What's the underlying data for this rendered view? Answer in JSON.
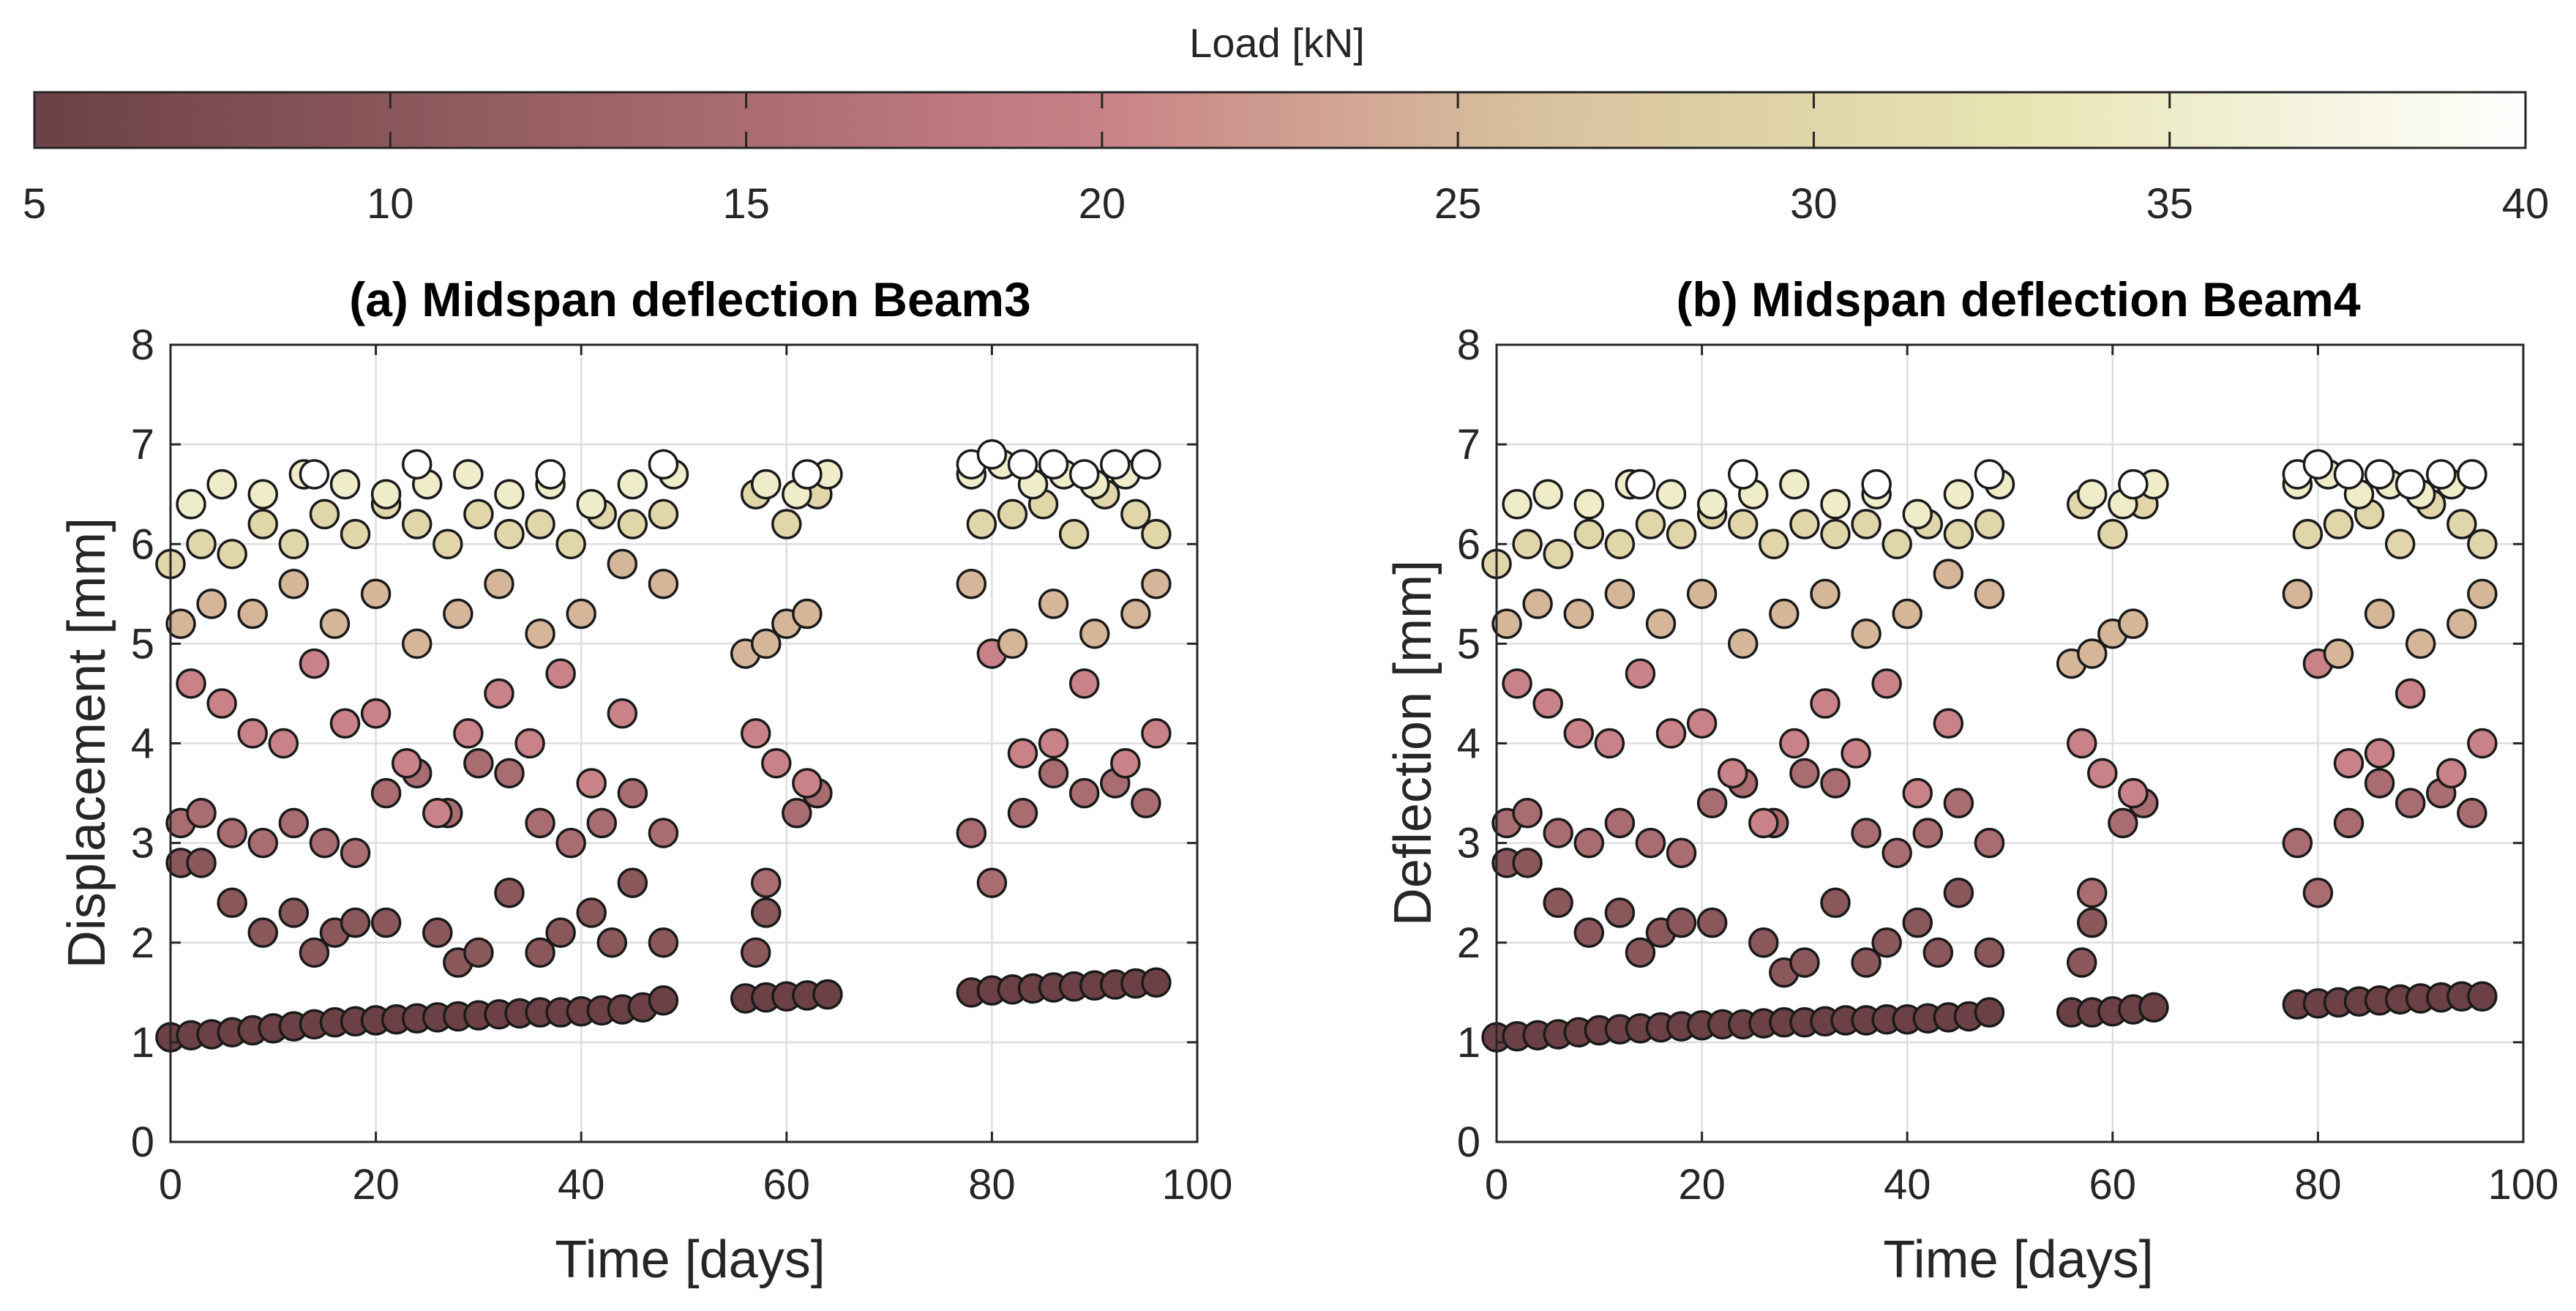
{
  "chart_data": [
    {
      "type": "scatter",
      "title": "(a) Midspan deflection Beam3",
      "xlabel": "Time [days]",
      "ylabel": "Displacement [mm]",
      "xlim": [
        0,
        100
      ],
      "ylim": [
        0,
        8
      ],
      "xticks": [
        0,
        20,
        40,
        60,
        80,
        100
      ],
      "yticks": [
        0,
        1,
        2,
        3,
        4,
        5,
        6,
        7,
        8
      ],
      "grid": true,
      "color_by": "Load [kN]",
      "series": [
        {
          "name": "5 kN",
          "load": 5,
          "x": [
            0,
            2,
            4,
            6,
            8,
            10,
            12,
            14,
            16,
            18,
            20,
            22,
            24,
            26,
            28,
            30,
            32,
            34,
            36,
            38,
            40,
            42,
            44,
            46,
            48,
            56,
            58,
            60,
            62,
            64,
            78,
            80,
            82,
            84,
            86,
            88,
            90,
            92,
            94,
            96
          ],
          "y": [
            1.05,
            1.07,
            1.08,
            1.1,
            1.12,
            1.14,
            1.16,
            1.18,
            1.2,
            1.21,
            1.22,
            1.23,
            1.24,
            1.25,
            1.26,
            1.27,
            1.28,
            1.29,
            1.3,
            1.3,
            1.31,
            1.32,
            1.33,
            1.35,
            1.42,
            1.44,
            1.45,
            1.46,
            1.47,
            1.48,
            1.5,
            1.52,
            1.53,
            1.54,
            1.55,
            1.56,
            1.57,
            1.58,
            1.59,
            1.6
          ]
        },
        {
          "name": "10 kN",
          "load": 10,
          "x": [
            1,
            3,
            6,
            9,
            12,
            14,
            16,
            18,
            21,
            26,
            28,
            30,
            33,
            36,
            38,
            41,
            43,
            45,
            48,
            57,
            58
          ],
          "y": [
            2.8,
            2.8,
            2.4,
            2.1,
            2.3,
            1.9,
            2.1,
            2.2,
            2.2,
            2.1,
            1.8,
            1.9,
            2.5,
            1.9,
            2.1,
            2.3,
            2.0,
            2.6,
            2.0,
            1.9,
            2.3
          ]
        },
        {
          "name": "15 kN",
          "load": 15,
          "x": [
            1,
            3,
            6,
            9,
            12,
            15,
            18,
            21,
            24,
            27,
            30,
            33,
            36,
            39,
            42,
            45,
            48,
            58,
            61,
            63,
            78,
            80,
            83,
            86,
            89,
            92,
            95
          ],
          "y": [
            3.2,
            3.3,
            3.1,
            3.0,
            3.2,
            3.0,
            2.9,
            3.5,
            3.7,
            3.3,
            3.8,
            3.7,
            3.2,
            3.0,
            3.2,
            3.5,
            3.1,
            2.6,
            3.3,
            3.5,
            3.1,
            2.6,
            3.3,
            3.7,
            3.5,
            3.6,
            3.4
          ]
        },
        {
          "name": "20 kN",
          "load": 20,
          "x": [
            2,
            5,
            8,
            11,
            14,
            17,
            20,
            23,
            26,
            29,
            32,
            35,
            38,
            41,
            44,
            57,
            59,
            62,
            80,
            83,
            86,
            89,
            93,
            96
          ],
          "y": [
            4.6,
            4.4,
            4.1,
            4.0,
            4.8,
            4.2,
            4.3,
            3.8,
            3.3,
            4.1,
            4.5,
            4.0,
            4.7,
            3.6,
            4.3,
            4.1,
            3.8,
            3.6,
            4.9,
            3.9,
            4.0,
            4.6,
            3.8,
            4.1
          ]
        },
        {
          "name": "25 kN",
          "load": 25,
          "x": [
            1,
            4,
            8,
            12,
            16,
            20,
            24,
            28,
            32,
            36,
            40,
            44,
            48,
            56,
            58,
            60,
            62,
            78,
            82,
            86,
            90,
            94,
            96
          ],
          "y": [
            5.2,
            5.4,
            5.3,
            5.6,
            5.2,
            5.5,
            5.0,
            5.3,
            5.6,
            5.1,
            5.3,
            5.8,
            5.6,
            4.9,
            5.0,
            5.2,
            5.3,
            5.6,
            5.0,
            5.4,
            5.1,
            5.3,
            5.6
          ]
        },
        {
          "name": "30 kN",
          "load": 30,
          "x": [
            0,
            3,
            6,
            9,
            12,
            15,
            18,
            21,
            24,
            27,
            30,
            33,
            36,
            39,
            42,
            45,
            48,
            57,
            60,
            63,
            79,
            82,
            85,
            88,
            91,
            94,
            96
          ],
          "y": [
            5.8,
            6.0,
            5.9,
            6.2,
            6.0,
            6.3,
            6.1,
            6.4,
            6.2,
            6.0,
            6.3,
            6.1,
            6.2,
            6.0,
            6.3,
            6.2,
            6.3,
            6.5,
            6.2,
            6.5,
            6.2,
            6.3,
            6.4,
            6.1,
            6.5,
            6.3,
            6.1
          ]
        },
        {
          "name": "35 kN",
          "load": 35,
          "x": [
            2,
            5,
            9,
            13,
            17,
            21,
            25,
            29,
            33,
            37,
            41,
            45,
            49,
            58,
            61,
            64,
            78,
            81,
            84,
            87,
            90,
            93,
            95
          ],
          "y": [
            6.4,
            6.6,
            6.5,
            6.7,
            6.6,
            6.5,
            6.6,
            6.7,
            6.5,
            6.6,
            6.4,
            6.6,
            6.7,
            6.6,
            6.5,
            6.7,
            6.7,
            6.8,
            6.6,
            6.7,
            6.6,
            6.7,
            6.8
          ]
        },
        {
          "name": "40 kN",
          "load": 40,
          "x": [
            14,
            24,
            37,
            48,
            62,
            78,
            80,
            83,
            86,
            89,
            92,
            95
          ],
          "y": [
            6.7,
            6.8,
            6.7,
            6.8,
            6.7,
            6.8,
            6.9,
            6.8,
            6.8,
            6.7,
            6.8,
            6.8
          ]
        }
      ]
    },
    {
      "type": "scatter",
      "title": "(b) Midspan deflection Beam4",
      "xlabel": "Time [days]",
      "ylabel": "Deflection [mm]",
      "xlim": [
        0,
        100
      ],
      "ylim": [
        0,
        8
      ],
      "xticks": [
        0,
        20,
        40,
        60,
        80,
        100
      ],
      "yticks": [
        0,
        1,
        2,
        3,
        4,
        5,
        6,
        7,
        8
      ],
      "grid": true,
      "color_by": "Load [kN]",
      "series": [
        {
          "name": "5 kN",
          "load": 5,
          "x": [
            0,
            2,
            4,
            6,
            8,
            10,
            12,
            14,
            16,
            18,
            20,
            22,
            24,
            26,
            28,
            30,
            32,
            34,
            36,
            38,
            40,
            42,
            44,
            46,
            48,
            56,
            58,
            60,
            62,
            64,
            78,
            80,
            82,
            84,
            86,
            88,
            90,
            92,
            94,
            96
          ],
          "y": [
            1.05,
            1.06,
            1.07,
            1.08,
            1.1,
            1.12,
            1.13,
            1.14,
            1.15,
            1.16,
            1.17,
            1.18,
            1.18,
            1.19,
            1.2,
            1.2,
            1.21,
            1.22,
            1.22,
            1.23,
            1.23,
            1.24,
            1.25,
            1.26,
            1.3,
            1.3,
            1.3,
            1.31,
            1.33,
            1.35,
            1.38,
            1.39,
            1.4,
            1.41,
            1.42,
            1.43,
            1.44,
            1.45,
            1.46,
            1.46
          ]
        },
        {
          "name": "10 kN",
          "load": 10,
          "x": [
            1,
            3,
            6,
            9,
            12,
            14,
            16,
            18,
            21,
            26,
            28,
            30,
            33,
            36,
            38,
            41,
            43,
            45,
            48,
            57,
            58
          ],
          "y": [
            2.8,
            2.8,
            2.4,
            2.1,
            2.3,
            1.9,
            2.1,
            2.2,
            2.2,
            2.0,
            1.7,
            1.8,
            2.4,
            1.8,
            2.0,
            2.2,
            1.9,
            2.5,
            1.9,
            1.8,
            2.2
          ]
        },
        {
          "name": "15 kN",
          "load": 15,
          "x": [
            1,
            3,
            6,
            9,
            12,
            15,
            18,
            21,
            24,
            27,
            30,
            33,
            36,
            39,
            42,
            45,
            48,
            58,
            61,
            63,
            78,
            80,
            83,
            86,
            89,
            92,
            95
          ],
          "y": [
            3.2,
            3.3,
            3.1,
            3.0,
            3.2,
            3.0,
            2.9,
            3.4,
            3.6,
            3.2,
            3.7,
            3.6,
            3.1,
            2.9,
            3.1,
            3.4,
            3.0,
            2.5,
            3.2,
            3.4,
            3.0,
            2.5,
            3.2,
            3.6,
            3.4,
            3.5,
            3.3
          ]
        },
        {
          "name": "20 kN",
          "load": 20,
          "x": [
            2,
            5,
            8,
            11,
            14,
            17,
            20,
            23,
            26,
            29,
            32,
            35,
            38,
            41,
            44,
            57,
            59,
            62,
            80,
            83,
            86,
            89,
            93,
            96
          ],
          "y": [
            4.6,
            4.4,
            4.1,
            4.0,
            4.7,
            4.1,
            4.2,
            3.7,
            3.2,
            4.0,
            4.4,
            3.9,
            4.6,
            3.5,
            4.2,
            4.0,
            3.7,
            3.5,
            4.8,
            3.8,
            3.9,
            4.5,
            3.7,
            4.0
          ]
        },
        {
          "name": "25 kN",
          "load": 25,
          "x": [
            1,
            4,
            8,
            12,
            16,
            20,
            24,
            28,
            32,
            36,
            40,
            44,
            48,
            56,
            58,
            60,
            62,
            78,
            82,
            86,
            90,
            94,
            96
          ],
          "y": [
            5.2,
            5.4,
            5.3,
            5.5,
            5.2,
            5.5,
            5.0,
            5.3,
            5.5,
            5.1,
            5.3,
            5.7,
            5.5,
            4.8,
            4.9,
            5.1,
            5.2,
            5.5,
            4.9,
            5.3,
            5.0,
            5.2,
            5.5
          ]
        },
        {
          "name": "30 kN",
          "load": 30,
          "x": [
            0,
            3,
            6,
            9,
            12,
            15,
            18,
            21,
            24,
            27,
            30,
            33,
            36,
            39,
            42,
            45,
            48,
            57,
            60,
            63,
            79,
            82,
            85,
            88,
            91,
            94,
            96
          ],
          "y": [
            5.8,
            6.0,
            5.9,
            6.1,
            6.0,
            6.2,
            6.1,
            6.3,
            6.2,
            6.0,
            6.2,
            6.1,
            6.2,
            6.0,
            6.2,
            6.1,
            6.2,
            6.4,
            6.1,
            6.4,
            6.1,
            6.2,
            6.3,
            6.0,
            6.4,
            6.2,
            6.0
          ]
        },
        {
          "name": "35 kN",
          "load": 35,
          "x": [
            2,
            5,
            9,
            13,
            17,
            21,
            25,
            29,
            33,
            37,
            41,
            45,
            49,
            58,
            61,
            64,
            78,
            81,
            84,
            87,
            90,
            93,
            95
          ],
          "y": [
            6.4,
            6.5,
            6.4,
            6.6,
            6.5,
            6.4,
            6.5,
            6.6,
            6.4,
            6.5,
            6.3,
            6.5,
            6.6,
            6.5,
            6.4,
            6.6,
            6.6,
            6.7,
            6.5,
            6.6,
            6.5,
            6.6,
            6.7
          ]
        },
        {
          "name": "40 kN",
          "load": 40,
          "x": [
            14,
            24,
            37,
            48,
            62,
            78,
            80,
            83,
            86,
            89,
            92,
            95
          ],
          "y": [
            6.6,
            6.7,
            6.6,
            6.7,
            6.6,
            6.7,
            6.8,
            6.7,
            6.7,
            6.6,
            6.7,
            6.7
          ]
        }
      ]
    }
  ],
  "colorbar": {
    "label": "Load [kN]",
    "min": 5,
    "max": 40,
    "ticks": [
      5,
      10,
      15,
      20,
      25,
      30,
      35,
      40
    ],
    "stops": [
      "#6b4145",
      "#c98287",
      "#d8c19d",
      "#e7e5b4",
      "#ffffff"
    ]
  }
}
